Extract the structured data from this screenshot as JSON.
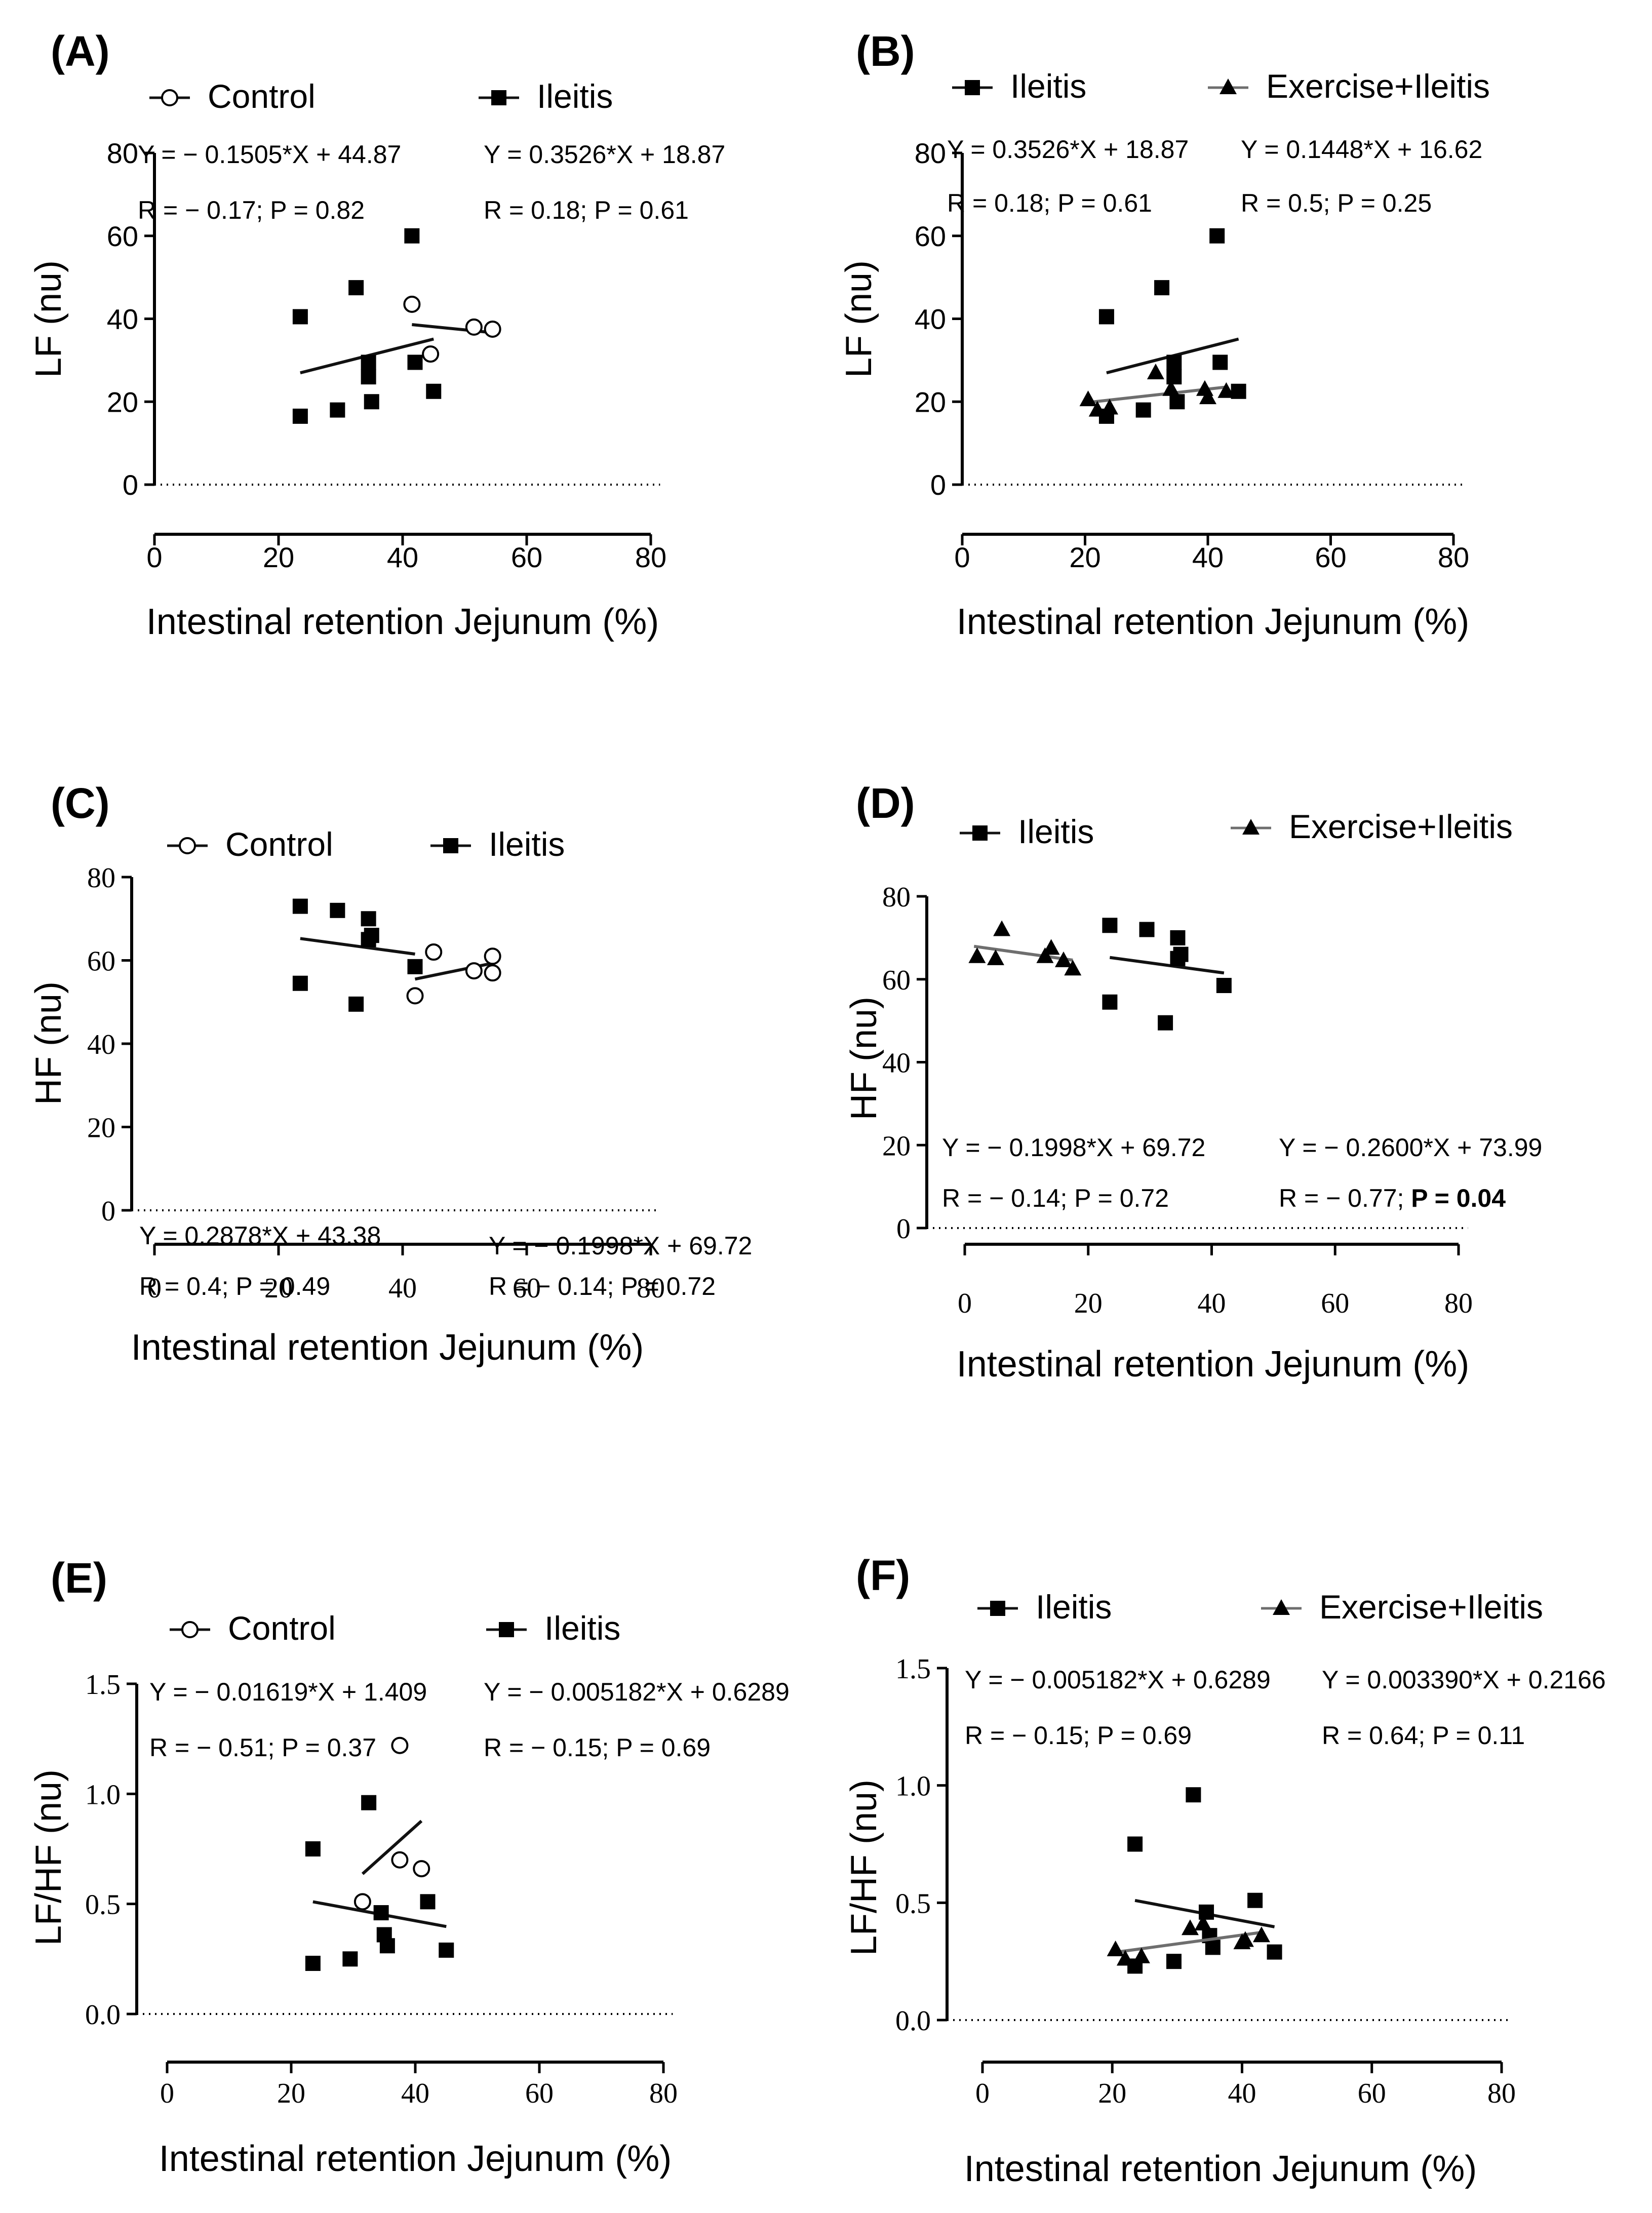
{
  "figure": {
    "xlabel": "Intestinal retention Jejunum (%)"
  },
  "chart_data": [
    {
      "id": "A",
      "panel_label": "(A)",
      "type": "scatter",
      "ylabel": "LF (nu)",
      "xlabel": "Intestinal retention Jejunum (%)",
      "xlim": [
        0,
        80
      ],
      "ylim": [
        0,
        80
      ],
      "xticks": [
        "0",
        "20",
        "40",
        "60",
        "80"
      ],
      "yticks": [
        "0",
        "20",
        "40",
        "60",
        "80"
      ],
      "legend": [
        {
          "name": "Control",
          "marker": "open-circle"
        },
        {
          "name": "Ileitis",
          "marker": "square"
        }
      ],
      "series": [
        {
          "name": "Control",
          "marker": "open-circle",
          "line_color": "#111111",
          "points": [
            [
              41.5,
              43.5
            ],
            [
              44.5,
              31.5
            ],
            [
              51.5,
              38
            ],
            [
              54.5,
              37.5
            ]
          ],
          "fit_x": [
            41.5,
            54.5
          ],
          "equation": "Y = − 0.1505*X + 44.87",
          "stats": "R = − 0.17; P = 0.82",
          "stats_bold": ""
        },
        {
          "name": "Ileitis",
          "marker": "square",
          "line_color": "#111111",
          "points": [
            [
              23.5,
              40.5
            ],
            [
              23.5,
              16.5
            ],
            [
              29.5,
              18
            ],
            [
              32.5,
              47.5
            ],
            [
              34.5,
              29.5
            ],
            [
              34.5,
              26
            ],
            [
              35,
              20
            ],
            [
              41.5,
              60
            ],
            [
              42,
              29.5
            ],
            [
              45,
              22.5
            ]
          ],
          "fit_x": [
            23.5,
            45
          ],
          "equation": "Y = 0.3526*X + 18.87",
          "stats": "R = 0.18; P = 0.61",
          "stats_bold": ""
        }
      ]
    },
    {
      "id": "B",
      "panel_label": "(B)",
      "type": "scatter",
      "ylabel": "LF (nu)",
      "xlabel": "Intestinal retention Jejunum (%)",
      "xlim": [
        0,
        80
      ],
      "ylim": [
        0,
        80
      ],
      "xticks": [
        "0",
        "20",
        "40",
        "60",
        "80"
      ],
      "yticks": [
        "0",
        "20",
        "40",
        "60",
        "80"
      ],
      "legend": [
        {
          "name": "Ileitis",
          "marker": "square"
        },
        {
          "name": "Exercise+Ileitis",
          "marker": "triangle"
        }
      ],
      "series": [
        {
          "name": "Ileitis",
          "marker": "square",
          "line_color": "#111111",
          "points": [
            [
              23.5,
              40.5
            ],
            [
              23.5,
              16.5
            ],
            [
              29.5,
              18
            ],
            [
              32.5,
              47.5
            ],
            [
              34.5,
              29.5
            ],
            [
              34.5,
              26
            ],
            [
              35,
              20
            ],
            [
              41.5,
              60
            ],
            [
              42,
              29.5
            ],
            [
              45,
              22.5
            ]
          ],
          "fit_x": [
            23.5,
            45
          ],
          "equation": "Y = 0.3526*X + 18.87",
          "stats": "R = 0.18; P = 0.61",
          "stats_bold": ""
        },
        {
          "name": "Exercise+Ileitis",
          "marker": "triangle",
          "line_color": "#6e6e6e",
          "points": [
            [
              20.5,
              20.5
            ],
            [
              22,
              18
            ],
            [
              24,
              18.5
            ],
            [
              31.5,
              27
            ],
            [
              34,
              23
            ],
            [
              39.5,
              23
            ],
            [
              40,
              21
            ],
            [
              43,
              22.5
            ]
          ],
          "fit_x": [
            20.5,
            43
          ],
          "equation": "Y = 0.1448*X + 16.62",
          "stats": "R = 0.5; P = 0.25",
          "stats_bold": ""
        }
      ]
    },
    {
      "id": "C",
      "panel_label": "(C)",
      "type": "scatter",
      "ylabel": "HF (nu)",
      "xlabel": "Intestinal retention Jejunum (%)",
      "xlim": [
        0,
        80
      ],
      "ylim": [
        0,
        80
      ],
      "xticks": [
        "0",
        "20",
        "40",
        "60",
        "80"
      ],
      "yticks": [
        "0",
        "20",
        "40",
        "60",
        "80"
      ],
      "legend": [
        {
          "name": "Control",
          "marker": "open-circle"
        },
        {
          "name": "Ileitis",
          "marker": "square"
        }
      ],
      "series": [
        {
          "name": "Control",
          "marker": "open-circle",
          "line_color": "#111111",
          "points": [
            [
              42,
              51.5
            ],
            [
              45,
              62
            ],
            [
              51.5,
              57.5
            ],
            [
              54.5,
              61
            ],
            [
              54.5,
              57
            ]
          ],
          "fit_x": [
            42,
            54.5
          ],
          "equation": "Y = 0.2878*X + 43.38",
          "stats": "R = 0.4; P = 0.49",
          "stats_bold": ""
        },
        {
          "name": "Ileitis",
          "marker": "square",
          "line_color": "#111111",
          "points": [
            [
              23.5,
              73
            ],
            [
              23.5,
              54.5
            ],
            [
              29.5,
              72
            ],
            [
              32.5,
              49.5
            ],
            [
              34.5,
              70
            ],
            [
              34.5,
              65
            ],
            [
              35,
              66
            ],
            [
              42,
              58.5
            ]
          ],
          "fit_x": [
            23.5,
            42
          ],
          "equation": "Y = − 0.1998*X + 69.72",
          "stats": "R = − 0.14; P = 0.72",
          "stats_bold": ""
        }
      ]
    },
    {
      "id": "D",
      "panel_label": "(D)",
      "type": "scatter",
      "ylabel": "HF (nu)",
      "xlabel": "Intestinal retention Jejunum (%)",
      "xlim": [
        0,
        80
      ],
      "ylim": [
        0,
        80
      ],
      "xticks": [
        "0",
        "20",
        "40",
        "60",
        "80"
      ],
      "yticks": [
        "0",
        "20",
        "40",
        "60",
        "80"
      ],
      "legend": [
        {
          "name": "Ileitis",
          "marker": "square"
        },
        {
          "name": "Exercise+Ileitis",
          "marker": "triangle"
        }
      ],
      "series": [
        {
          "name": "Ileitis",
          "marker": "square",
          "line_color": "#111111",
          "points": [
            [
              23.5,
              73
            ],
            [
              23.5,
              54.5
            ],
            [
              29.5,
              72
            ],
            [
              32.5,
              49.5
            ],
            [
              34.5,
              70
            ],
            [
              34.5,
              65
            ],
            [
              35,
              66
            ],
            [
              42,
              58.5
            ]
          ],
          "fit_x": [
            23.5,
            42
          ],
          "equation": "Y = − 0.1998*X + 69.72",
          "stats": "R = − 0.14; P = 0.72",
          "stats_bold": ""
        },
        {
          "name": "Exercise+Ileitis",
          "marker": "triangle",
          "line_color": "#6e6e6e",
          "points": [
            [
              2,
              65.5
            ],
            [
              5,
              65
            ],
            [
              6,
              72
            ],
            [
              13,
              65.5
            ],
            [
              14,
              67.5
            ],
            [
              16,
              64.5
            ],
            [
              17.5,
              62.5
            ]
          ],
          "fit_x": [
            1.5,
            17.5
          ],
          "equation": "Y = − 0.2600*X + 73.99",
          "stats": "R = − 0.77; ",
          "stats_bold": "P = 0.04"
        }
      ]
    },
    {
      "id": "E",
      "panel_label": "(E)",
      "type": "scatter",
      "ylabel": "LF/HF (nu)",
      "xlabel": "Intestinal retention Jejunum (%)",
      "xlim": [
        0,
        80
      ],
      "ylim": [
        0,
        1.5
      ],
      "xticks": [
        "0",
        "20",
        "40",
        "60",
        "80"
      ],
      "yticks": [
        "0.0",
        "0.5",
        "1.0",
        "1.5"
      ],
      "legend": [
        {
          "name": "Control",
          "marker": "open-circle"
        },
        {
          "name": "Ileitis",
          "marker": "square"
        }
      ],
      "series": [
        {
          "name": "Control",
          "marker": "open-circle",
          "line_color": "#111111",
          "points": [
            [
              31.5,
              0.51
            ],
            [
              37.5,
              1.22
            ],
            [
              37.5,
              0.7
            ],
            [
              41,
              0.66
            ]
          ],
          "fit_x": [
            31.5,
            41
          ],
          "equation": "Y = − 0.01619*X + 1.409",
          "stats": "R = − 0.51; P = 0.37",
          "stats_bold": ""
        },
        {
          "name": "Ileitis",
          "marker": "square",
          "line_color": "#111111",
          "points": [
            [
              23.5,
              0.75
            ],
            [
              23.5,
              0.23
            ],
            [
              29.5,
              0.25
            ],
            [
              32.5,
              0.96
            ],
            [
              34.5,
              0.46
            ],
            [
              35,
              0.36
            ],
            [
              35.5,
              0.31
            ],
            [
              42,
              0.51
            ],
            [
              45,
              0.29
            ]
          ],
          "fit_x": [
            23.5,
            45
          ],
          "equation": "Y = − 0.005182*X + 0.6289",
          "stats": "R = − 0.15; P = 0.69",
          "stats_bold": ""
        }
      ]
    },
    {
      "id": "F",
      "panel_label": "(F)",
      "type": "scatter",
      "ylabel": "LF/HF (nu)",
      "xlabel": "Intestinal retention Jejunum (%)",
      "xlim": [
        0,
        80
      ],
      "ylim": [
        0,
        1.5
      ],
      "xticks": [
        "0",
        "20",
        "40",
        "60",
        "80"
      ],
      "yticks": [
        "0.0",
        "0.5",
        "1.0",
        "1.5"
      ],
      "legend": [
        {
          "name": "Ileitis",
          "marker": "square"
        },
        {
          "name": "Exercise+Ileitis",
          "marker": "triangle"
        }
      ],
      "series": [
        {
          "name": "Ileitis",
          "marker": "square",
          "line_color": "#111111",
          "points": [
            [
              23.5,
              0.75
            ],
            [
              23.5,
              0.23
            ],
            [
              29.5,
              0.25
            ],
            [
              32.5,
              0.96
            ],
            [
              34.5,
              0.46
            ],
            [
              35,
              0.36
            ],
            [
              35.5,
              0.31
            ],
            [
              42,
              0.51
            ],
            [
              45,
              0.29
            ]
          ],
          "fit_x": [
            23.5,
            45
          ],
          "equation": "Y = − 0.005182*X + 0.6289",
          "stats": "R = − 0.15; P = 0.69",
          "stats_bold": ""
        },
        {
          "name": "Exercise+Ileitis",
          "marker": "triangle",
          "line_color": "#6e6e6e",
          "points": [
            [
              20.5,
              0.3
            ],
            [
              22,
              0.26
            ],
            [
              24.5,
              0.27
            ],
            [
              32,
              0.39
            ],
            [
              34,
              0.41
            ],
            [
              40,
              0.33
            ],
            [
              40.5,
              0.34
            ],
            [
              43,
              0.36
            ]
          ],
          "fit_x": [
            20.5,
            43
          ],
          "equation": "Y = 0.003390*X + 0.2166",
          "stats": "R = 0.64; P = 0.11",
          "stats_bold": ""
        }
      ]
    }
  ]
}
